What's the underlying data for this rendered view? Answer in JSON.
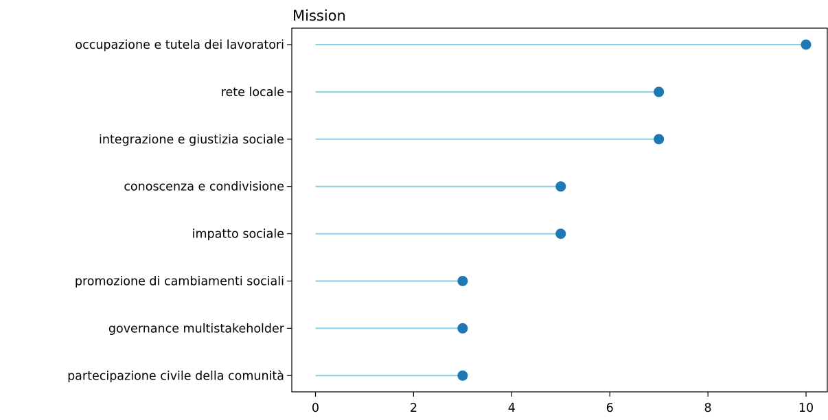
{
  "chart_data": {
    "type": "lollipop",
    "title": "Mission",
    "xlabel": "",
    "ylabel": "",
    "xlim": [
      -0.5,
      10.4
    ],
    "xticks": [
      0,
      2,
      4,
      6,
      8,
      10
    ],
    "grid": false,
    "legend": "none",
    "stem_color": "#87ceeb",
    "marker_color": "#1f77b4",
    "categories": [
      "occupazione e tutela dei lavoratori",
      "rete locale",
      "integrazione e giustizia sociale",
      "conoscenza e condivisione",
      "impatto sociale",
      "promozione di cambiamenti sociali",
      "governance multistakeholder",
      "partecipazione civile della comunità"
    ],
    "values": [
      10,
      7,
      7,
      5,
      5,
      3,
      3,
      3
    ]
  }
}
